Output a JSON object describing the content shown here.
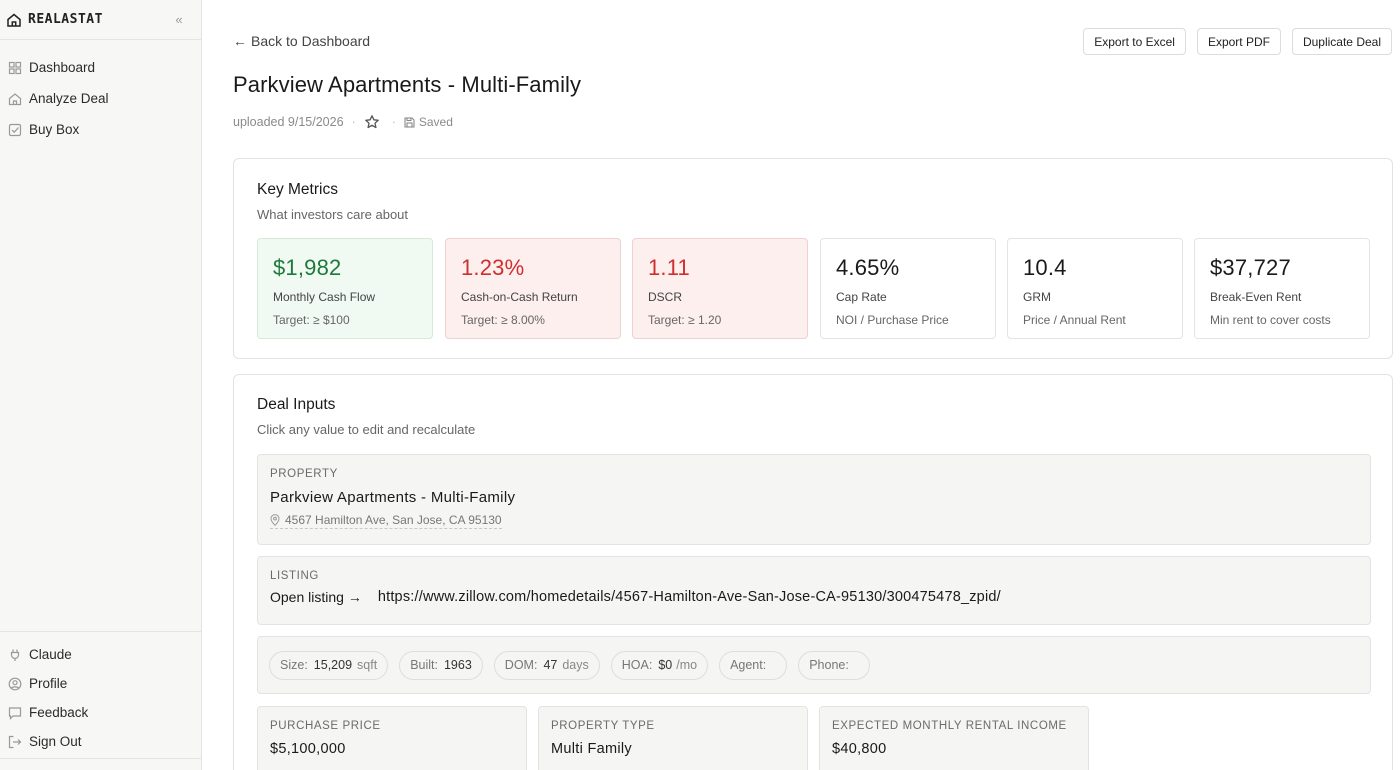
{
  "brand": {
    "name": "REALASTAT"
  },
  "sidebar": {
    "items": [
      {
        "label": "Dashboard",
        "icon": "grid-icon"
      },
      {
        "label": "Analyze Deal",
        "icon": "home-icon"
      },
      {
        "label": "Buy Box",
        "icon": "checkbox-icon"
      }
    ],
    "bottom": [
      {
        "label": "Claude",
        "icon": "plug-icon"
      },
      {
        "label": "Profile",
        "icon": "user-circle-icon"
      },
      {
        "label": "Feedback",
        "icon": "message-icon"
      },
      {
        "label": "Sign Out",
        "icon": "logout-icon"
      }
    ]
  },
  "header": {
    "back_label": "Back to Dashboard",
    "actions": {
      "export_excel": "Export to Excel",
      "export_pdf": "Export PDF",
      "duplicate": "Duplicate Deal"
    },
    "title": "Parkview Apartments - Multi-Family",
    "uploaded": "uploaded 9/15/2026",
    "saved": "Saved"
  },
  "key_metrics": {
    "title": "Key Metrics",
    "subtitle": "What investors care about",
    "items": [
      {
        "value": "$1,982",
        "label": "Monthly Cash Flow",
        "note": "Target: ≥ $100",
        "status": "good"
      },
      {
        "value": "1.23%",
        "label": "Cash-on-Cash Return",
        "note": "Target: ≥ 8.00%",
        "status": "bad"
      },
      {
        "value": "1.11",
        "label": "DSCR",
        "note": "Target: ≥ 1.20",
        "status": "bad"
      },
      {
        "value": "4.65%",
        "label": "Cap Rate",
        "note": "NOI / Purchase Price",
        "status": "neutral"
      },
      {
        "value": "10.4",
        "label": "GRM",
        "note": "Price / Annual Rent",
        "status": "neutral"
      },
      {
        "value": "$37,727",
        "label": "Break-Even Rent",
        "note": "Min rent to cover costs",
        "status": "neutral"
      }
    ],
    "colors": {
      "good": "#1d7a3a",
      "bad": "#cf2e2e"
    }
  },
  "deal_inputs": {
    "title": "Deal Inputs",
    "subtitle": "Click any value to edit and recalculate",
    "property": {
      "label": "PROPERTY",
      "name": "Parkview Apartments - Multi-Family",
      "address": "4567 Hamilton Ave, San Jose, CA 95130"
    },
    "listing": {
      "label": "LISTING",
      "open_label": "Open listing →",
      "url": "https://www.zillow.com/homedetails/4567-Hamilton-Ave-San-Jose-CA-95130/300475478_zpid/"
    },
    "chips": {
      "size": {
        "key": "Size:",
        "value": "15,209",
        "unit": "sqft"
      },
      "built": {
        "key": "Built:",
        "value": "1963"
      },
      "dom": {
        "key": "DOM:",
        "value": "47",
        "unit": "days"
      },
      "hoa": {
        "key": "HOA:",
        "value": "$0",
        "unit": "/mo"
      },
      "agent": {
        "key": "Agent:",
        "value": ""
      },
      "phone": {
        "key": "Phone:",
        "value": ""
      }
    },
    "fields": {
      "purchase_price": {
        "label": "PURCHASE PRICE",
        "value": "$5,100,000"
      },
      "property_type": {
        "label": "PROPERTY TYPE",
        "value": "Multi Family"
      },
      "rental_income": {
        "label": "EXPECTED MONTHLY RENTAL INCOME",
        "value": "$40,800"
      }
    }
  }
}
